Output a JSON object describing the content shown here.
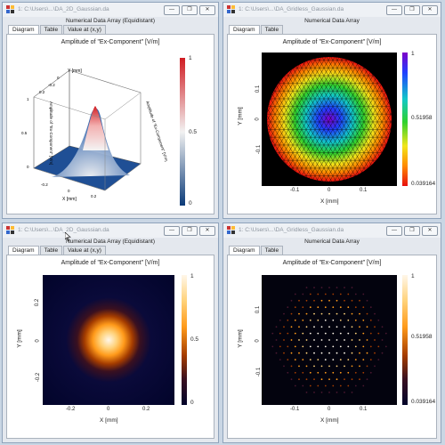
{
  "windows": [
    {
      "title": "1: C:\\Users\\...\\DA_2D_Gaussian.da",
      "subtitle": "Numerical Data Array (Equidistant)",
      "tabs": [
        "Diagram",
        "Table",
        "Value at (x,y)"
      ],
      "plot_title": "Amplitude of \"Ex-Component\"   [V/m]",
      "colorbar_labels": {
        "top": "1",
        "mid": "0.5",
        "bottom": "0"
      },
      "axis3d": {
        "x_title": "X [mm]",
        "y_title": "Y [mm]",
        "z_title": "Amplitude of \"Ex-Component\" [V/m]",
        "x_ticks": [
          "-0.2",
          "0",
          "0.2"
        ],
        "y_ticks": [
          "-0.2",
          "0",
          "0.2"
        ],
        "z_ticks": [
          "0",
          "0.5",
          "1"
        ]
      }
    },
    {
      "title": "1: C:\\Users\\...\\DA_Gridless_Gaussian.da",
      "subtitle": "Numerical Data Array",
      "tabs": [
        "Diagram",
        "Table"
      ],
      "plot_title": "Amplitude of \"Ex-Component\"   [V/m]",
      "colorbar_labels": {
        "top": "1",
        "mid": "0.51958",
        "bottom": "0.039164"
      },
      "x_ticks": [
        "-0.1",
        "0",
        "0.1"
      ],
      "y_ticks": [
        "0.1",
        "0",
        "-0.1"
      ],
      "xlabel": "X [mm]",
      "ylabel": "Y [mm]"
    },
    {
      "title": "1: C:\\Users\\...\\DA_2D_Gaussian.da",
      "subtitle": "Numerical Data Array (Equidistant)",
      "tabs": [
        "Diagram",
        "Table",
        "Value at (x,y)"
      ],
      "plot_title": "Amplitude of \"Ex-Component\"   [V/m]",
      "colorbar_labels": {
        "top": "1",
        "mid": "0.5",
        "bottom": "0"
      },
      "x_ticks": [
        "-0.2",
        "0",
        "0.2"
      ],
      "y_ticks": [
        "0.2",
        "0",
        "-0.2"
      ],
      "xlabel": "X [mm]",
      "ylabel": "Y [mm]"
    },
    {
      "title": "1: C:\\Users\\...\\DA_Gridless_Gaussian.da",
      "subtitle": "Numerical Data Array",
      "tabs": [
        "Diagram",
        "Table"
      ],
      "plot_title": "Amplitude of \"Ex-Component\"   [V/m]",
      "colorbar_labels": {
        "top": "1",
        "mid": "0.51958",
        "bottom": "0.039164"
      },
      "x_ticks": [
        "-0.1",
        "0",
        "0.1"
      ],
      "y_ticks": [
        "0.1",
        "0",
        "-0.1"
      ],
      "xlabel": "X [mm]",
      "ylabel": "Y [mm]"
    }
  ],
  "colors": {
    "diverging_top": "#d01c22",
    "diverging_mid": "#f4f4f4",
    "diverging_bottom": "#0a3a78",
    "heat_top": "#fff7ea",
    "heat_bottom": "#00001a"
  }
}
